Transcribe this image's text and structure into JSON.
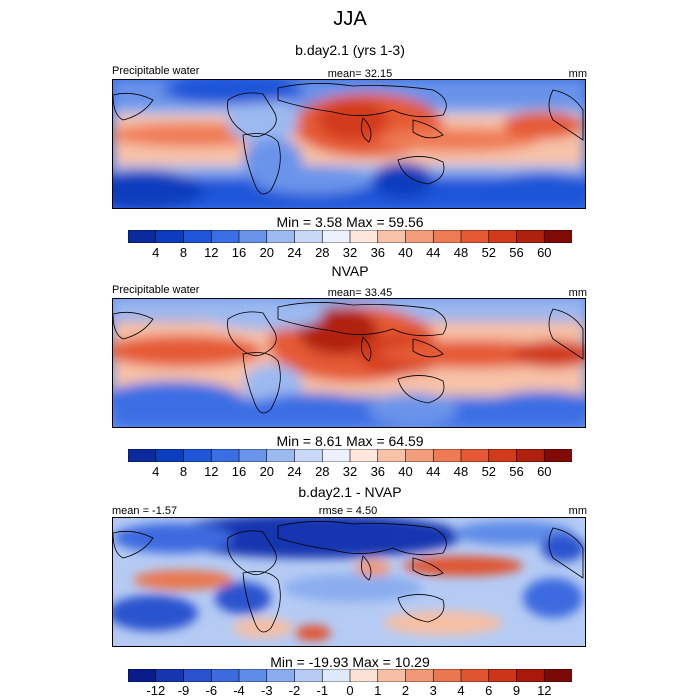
{
  "title": "JJA",
  "palette_ppw": [
    "#0a2a9e",
    "#0b3dbe",
    "#1f55d8",
    "#3a6ee4",
    "#6a94ea",
    "#9cb9f0",
    "#c8d8f6",
    "#ecf1fb",
    "#fde6dc",
    "#f8c2a8",
    "#f49d7c",
    "#ef7b54",
    "#e55a34",
    "#d23a1c",
    "#b0200e",
    "#7f0a06"
  ],
  "palette_diff": [
    "#0a1c8c",
    "#1636b0",
    "#2a52cf",
    "#3c6be0",
    "#5f8ce8",
    "#8aadef",
    "#b5cbf4",
    "#e0e9fa",
    "#fbe2d6",
    "#f6bfa4",
    "#f19976",
    "#ea7750",
    "#df5530",
    "#cc3519",
    "#a8190a",
    "#7a0a05"
  ],
  "panels": [
    {
      "title": "b.day2.1 (yrs 1-3)",
      "left_label": "Precipitable water",
      "center_label": "mean=  32.15",
      "right_label": "mm",
      "stats": "Min =   3.58 Max =  59.56",
      "colorbar": "ppw",
      "ticks": [
        "4",
        "8",
        "12",
        "16",
        "20",
        "24",
        "28",
        "32",
        "36",
        "40",
        "44",
        "48",
        "52",
        "56",
        "60"
      ]
    },
    {
      "title": "NVAP",
      "left_label": "Precipitable water",
      "center_label": "mean=  33.45",
      "right_label": "mm",
      "stats": "Min =   8.61 Max =  64.59",
      "colorbar": "ppw",
      "ticks": [
        "4",
        "8",
        "12",
        "16",
        "20",
        "24",
        "28",
        "32",
        "36",
        "40",
        "44",
        "48",
        "52",
        "56",
        "60"
      ]
    },
    {
      "title": "b.day2.1 - NVAP",
      "left_label": "mean =  -1.57",
      "center_label": "rmse =   4.50",
      "right_label": "mm",
      "stats": "Min = -19.93 Max =  10.29",
      "colorbar": "diff",
      "ticks": [
        "-12",
        "-9",
        "-6",
        "-4",
        "-3",
        "-2",
        "-1",
        "0",
        "1",
        "2",
        "3",
        "4",
        "6",
        "9",
        "12"
      ]
    }
  ]
}
